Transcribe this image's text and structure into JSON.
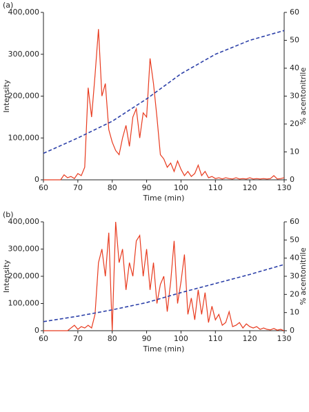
{
  "chart_data": [
    {
      "type": "line",
      "panel_label": "(a)",
      "xlabel": "Time (min)",
      "ylabel": "Intensity",
      "y2label": "% acentonitrile",
      "xlim": [
        60,
        130
      ],
      "xticks": [
        60,
        70,
        80,
        90,
        100,
        110,
        120,
        130
      ],
      "ylim": [
        0,
        400000
      ],
      "yticks": [
        0,
        {
          "value": 100000,
          "label": "100,000"
        },
        {
          "value": 200000,
          "label": "200,000"
        },
        {
          "value": 300000,
          "label": "300,000"
        },
        {
          "value": 400000,
          "label": "400,000"
        }
      ],
      "y2lim": [
        0,
        60
      ],
      "y2ticks": [
        0,
        10,
        20,
        30,
        40,
        50,
        60
      ],
      "series": [
        {
          "color": "#e8391d",
          "x": [
            60,
            61,
            62,
            63,
            64,
            65,
            66,
            67,
            68,
            69,
            70,
            71,
            72,
            73,
            74,
            75,
            76,
            77,
            78,
            79,
            80,
            81,
            82,
            83,
            84,
            85,
            86,
            87,
            88,
            89,
            90,
            91,
            92,
            93,
            94,
            95,
            96,
            97,
            98,
            99,
            100,
            101,
            102,
            103,
            104,
            105,
            106,
            107,
            108,
            109,
            110,
            111,
            112,
            113,
            114,
            115,
            116,
            117,
            118,
            119,
            120,
            121,
            122,
            123,
            124,
            125,
            126,
            127,
            128,
            129,
            130
          ],
          "values": [
            0,
            0,
            0,
            0,
            0,
            0,
            12000,
            5000,
            8000,
            3000,
            15000,
            10000,
            30000,
            220000,
            150000,
            250000,
            360000,
            200000,
            230000,
            120000,
            90000,
            70000,
            60000,
            100000,
            130000,
            80000,
            150000,
            170000,
            100000,
            160000,
            150000,
            290000,
            230000,
            150000,
            60000,
            50000,
            30000,
            40000,
            20000,
            45000,
            25000,
            10000,
            20000,
            8000,
            15000,
            35000,
            10000,
            20000,
            5000,
            8000,
            3000,
            5000,
            2000,
            5000,
            3000,
            2000,
            5000,
            2000,
            3000,
            2000,
            5000,
            2000,
            3000,
            2000,
            3000,
            2000,
            3000,
            10000,
            2000,
            3000,
            5000
          ]
        },
        {
          "color": "#2b3fa8",
          "dashed": true,
          "axis": "y2",
          "x": [
            60,
            70,
            80,
            90,
            100,
            110,
            120,
            130
          ],
          "values": [
            9.5,
            15,
            21,
            29,
            38,
            45,
            50,
            53.5
          ]
        }
      ]
    },
    {
      "type": "line",
      "panel_label": "(b)",
      "xlabel": "Time (min)",
      "ylabel": "Intensity",
      "y2label": "% acentonitrile",
      "xlim": [
        60,
        130
      ],
      "xticks": [
        60,
        70,
        80,
        90,
        100,
        110,
        120,
        130
      ],
      "ylim": [
        0,
        400000
      ],
      "yticks": [
        0,
        {
          "value": 100000,
          "label": "100,000"
        },
        {
          "value": 200000,
          "label": "200,000"
        },
        {
          "value": 300000,
          "label": "300,000"
        },
        {
          "value": 400000,
          "label": "400,000"
        }
      ],
      "y2lim": [
        0,
        60
      ],
      "y2ticks": [
        0,
        10,
        20,
        30,
        40,
        50,
        60
      ],
      "series": [
        {
          "color": "#e8391d",
          "x": [
            60,
            61,
            62,
            63,
            64,
            65,
            66,
            67,
            68,
            69,
            70,
            71,
            72,
            73,
            74,
            75,
            76,
            77,
            78,
            79,
            80,
            81,
            82,
            83,
            84,
            85,
            86,
            87,
            88,
            89,
            90,
            91,
            92,
            93,
            94,
            95,
            96,
            97,
            98,
            99,
            100,
            101,
            102,
            103,
            104,
            105,
            106,
            107,
            108,
            109,
            110,
            111,
            112,
            113,
            114,
            115,
            116,
            117,
            118,
            119,
            120,
            121,
            122,
            123,
            124,
            125,
            126,
            127,
            128,
            129,
            130
          ],
          "values": [
            0,
            0,
            0,
            0,
            0,
            0,
            0,
            0,
            10000,
            20000,
            5000,
            15000,
            10000,
            20000,
            10000,
            60000,
            250000,
            300000,
            200000,
            360000,
            0,
            400000,
            250000,
            300000,
            150000,
            250000,
            200000,
            330000,
            350000,
            200000,
            300000,
            150000,
            250000,
            100000,
            170000,
            200000,
            70000,
            180000,
            330000,
            100000,
            180000,
            280000,
            60000,
            120000,
            40000,
            150000,
            60000,
            140000,
            30000,
            90000,
            40000,
            60000,
            20000,
            30000,
            70000,
            15000,
            20000,
            30000,
            10000,
            25000,
            15000,
            10000,
            15000,
            5000,
            10000,
            5000,
            3000,
            8000,
            2000,
            5000,
            0
          ]
        },
        {
          "color": "#2b3fa8",
          "dashed": true,
          "axis": "y2",
          "x": [
            60,
            70,
            80,
            90,
            100,
            110,
            120,
            130
          ],
          "values": [
            5,
            8,
            11.5,
            15.5,
            21,
            26,
            31,
            36.5
          ]
        }
      ]
    }
  ]
}
